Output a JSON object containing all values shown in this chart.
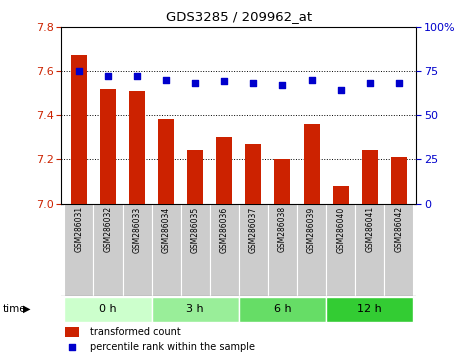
{
  "title": "GDS3285 / 209962_at",
  "samples": [
    "GSM286031",
    "GSM286032",
    "GSM286033",
    "GSM286034",
    "GSM286035",
    "GSM286036",
    "GSM286037",
    "GSM286038",
    "GSM286039",
    "GSM286040",
    "GSM286041",
    "GSM286042"
  ],
  "bar_values": [
    7.67,
    7.52,
    7.51,
    7.38,
    7.24,
    7.3,
    7.27,
    7.2,
    7.36,
    7.08,
    7.24,
    7.21
  ],
  "percentile_values": [
    75,
    72,
    72,
    70,
    68,
    69,
    68,
    67,
    70,
    64,
    68,
    68
  ],
  "bar_color": "#cc2200",
  "percentile_color": "#0000cc",
  "ylim_left": [
    7.0,
    7.8
  ],
  "ylim_right": [
    0,
    100
  ],
  "yticks_left": [
    7.0,
    7.2,
    7.4,
    7.6,
    7.8
  ],
  "yticks_right": [
    0,
    25,
    50,
    75,
    100
  ],
  "ytick_labels_right": [
    "0",
    "25",
    "50",
    "75",
    "100%"
  ],
  "groups": [
    {
      "label": "0 h",
      "start": 0,
      "end": 3,
      "color": "#ccffcc"
    },
    {
      "label": "3 h",
      "start": 3,
      "end": 6,
      "color": "#99ee99"
    },
    {
      "label": "6 h",
      "start": 6,
      "end": 9,
      "color": "#66dd66"
    },
    {
      "label": "12 h",
      "start": 9,
      "end": 12,
      "color": "#33cc33"
    }
  ],
  "legend_bar_label": "transformed count",
  "legend_pct_label": "percentile rank within the sample",
  "tick_label_color_left": "#cc2200",
  "tick_label_color_right": "#0000cc",
  "sample_box_color": "#cccccc",
  "grid_lines": [
    7.2,
    7.4,
    7.6
  ]
}
